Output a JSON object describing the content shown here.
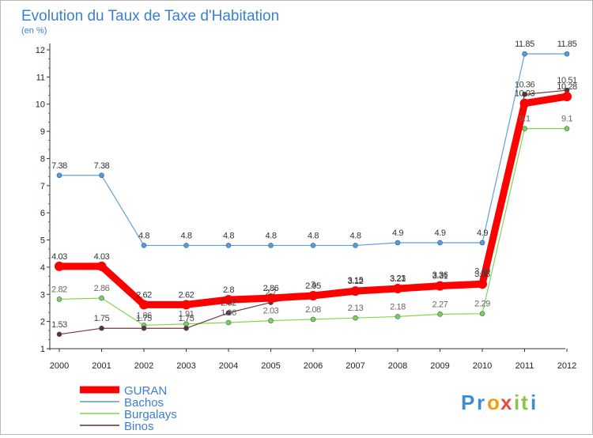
{
  "chart_data": {
    "type": "line",
    "title": "Evolution du Taux de Taxe d'Habitation",
    "subtitle": "(en %)",
    "xlabel": "",
    "ylabel": "",
    "x": [
      "2000",
      "2001",
      "2002",
      "2003",
      "2004",
      "2005",
      "2006",
      "2007",
      "2008",
      "2009",
      "2010",
      "2011",
      "2012"
    ],
    "ylim": [
      1,
      12
    ],
    "yticks": [
      1,
      2,
      3,
      4,
      5,
      6,
      7,
      8,
      9,
      10,
      11,
      12
    ],
    "grid": false,
    "legend_position": "bottom-left",
    "series": [
      {
        "name": "GURAN",
        "color": "#ff0000",
        "values": [
          4.03,
          4.03,
          2.62,
          2.62,
          2.8,
          2.86,
          2.95,
          3.12,
          3.21,
          3.31,
          3.38,
          10.03,
          10.28
        ],
        "labels": [
          "4.03",
          "4.03",
          "2.62",
          "2.62",
          "2.8",
          "2.86",
          "2.95",
          "3.12",
          "3.21",
          "3.31",
          "3.38",
          "10.03",
          "10.28"
        ]
      },
      {
        "name": "Bachos",
        "color": "#5b9bd5",
        "values": [
          7.38,
          7.38,
          4.8,
          4.8,
          4.8,
          4.8,
          4.8,
          4.8,
          4.9,
          4.9,
          4.9,
          11.85,
          11.85
        ],
        "labels": [
          "7.38",
          "7.38",
          "4.8",
          "4.8",
          "4.8",
          "4.8",
          "4.8",
          "4.8",
          "4.9",
          "4.9",
          "4.9",
          "11.85",
          "11.85"
        ]
      },
      {
        "name": "Burgalays",
        "color": "#7ed348",
        "values": [
          2.82,
          2.86,
          1.86,
          1.91,
          1.96,
          2.03,
          2.08,
          2.13,
          2.18,
          2.27,
          2.29,
          9.1,
          9.1
        ],
        "labels": [
          "2.82",
          "2.86",
          "1.86",
          "1.91",
          "1.96",
          "2.03",
          "2.08",
          "2.13",
          "2.18",
          "2.27",
          "2.29",
          "9.1",
          "9.1"
        ]
      },
      {
        "name": "Binos",
        "color": "#6b2c2c",
        "values": [
          1.53,
          1.75,
          1.75,
          1.75,
          2.32,
          2.7,
          3,
          3.15,
          3.23,
          3.36,
          3.49,
          10.36,
          10.51
        ],
        "labels": [
          "1.53",
          "1.75",
          "1.75",
          "1.75",
          "2.32",
          "2.7",
          "3",
          "3.15",
          "3.23",
          "3.36",
          "3.49",
          "10.36",
          "10.51"
        ]
      }
    ]
  },
  "brand": {
    "letters": [
      "P",
      "r",
      "o",
      "x",
      "i",
      "t",
      "i"
    ],
    "colors": [
      "#3b8fd1",
      "#3b8fd1",
      "#f39c12",
      "#e74c3c",
      "#8bc34a",
      "#8bc34a",
      "#3b8fd1"
    ]
  }
}
